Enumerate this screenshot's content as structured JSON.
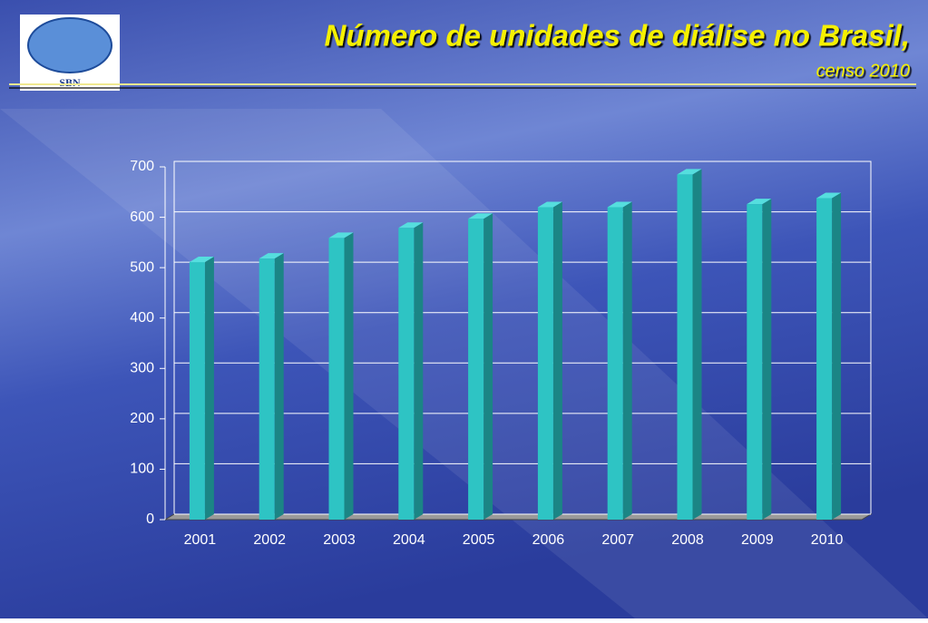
{
  "logo": {
    "text": "SBN"
  },
  "chart_data": {
    "type": "bar3d",
    "title": "Número de unidades de diálise no Brasil,",
    "subtitle": "censo 2010",
    "categories": [
      "2001",
      "2002",
      "2003",
      "2004",
      "2005",
      "2006",
      "2007",
      "2008",
      "2009",
      "2010"
    ],
    "values": [
      511,
      518,
      559,
      579,
      597,
      620,
      620,
      685,
      626,
      638
    ],
    "color": "#2ec4c4",
    "ylim": [
      0,
      700
    ],
    "yticks": [
      0,
      100,
      200,
      300,
      400,
      500,
      600,
      700
    ],
    "grid": true
  }
}
